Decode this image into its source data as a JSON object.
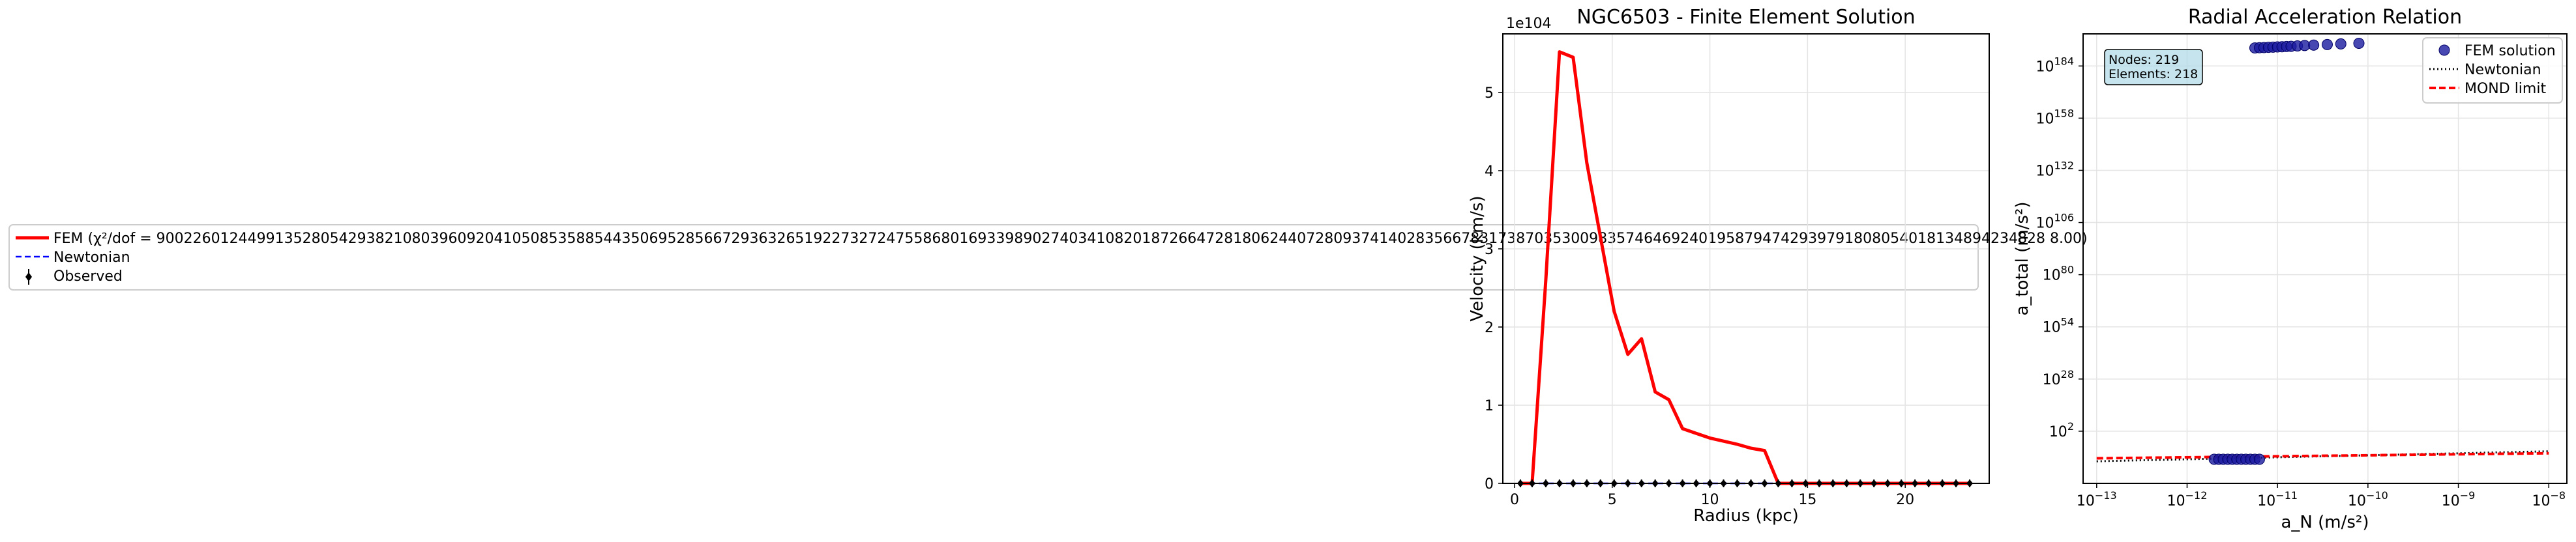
{
  "figure": {
    "legend_left": {
      "entries": [
        {
          "label": "FEM (χ²/dof = 900226012449913528054293821080396092041050853588544350695285667293632651922732724755868016933989027403410820187266472818062440728093741402835667831738703530098357464692401958794742939791808054018134894234828 8.00)",
          "color": "#ff0000",
          "style": "solid"
        },
        {
          "label": "Newtonian",
          "color": "#0000ff",
          "style": "dashed"
        },
        {
          "label": "Observed",
          "color": "#000000",
          "style": "errorbar"
        }
      ]
    }
  },
  "chart_data": [
    {
      "type": "line",
      "title": "NGC6503 - Finite Element Solution",
      "xlabel": "Radius (kpc)",
      "ylabel": "Velocity (km/s)",
      "offset_label": "1e104",
      "xlim": [
        -0.6,
        24.3
      ],
      "ylim": [
        0,
        5.75
      ],
      "x_ticks": [
        0,
        5,
        10,
        15,
        20
      ],
      "y_ticks": [
        0,
        1,
        2,
        3,
        4,
        5
      ],
      "grid": true,
      "series": [
        {
          "name": "FEM",
          "color": "#ff0000",
          "x": [
            0.3,
            0.9,
            1.6,
            2.3,
            3.0,
            3.7,
            4.4,
            5.1,
            5.8,
            6.5,
            7.2,
            7.9,
            8.6,
            9.3,
            10.0,
            10.7,
            11.4,
            12.1,
            12.8,
            13.5,
            14.2,
            14.9,
            15.6,
            16.3,
            17.0,
            17.7,
            18.4,
            19.1,
            19.8,
            20.5,
            21.2,
            21.9,
            22.6,
            23.3
          ],
          "values": [
            0,
            0,
            2.6,
            5.52,
            5.45,
            4.1,
            3.15,
            2.2,
            1.65,
            1.85,
            1.17,
            1.07,
            0.7,
            0.64,
            0.58,
            0.54,
            0.5,
            0.45,
            0.42,
            0,
            0,
            0,
            0,
            0,
            0,
            0,
            0,
            0,
            0,
            0,
            0,
            0,
            0,
            0
          ]
        },
        {
          "name": "Newtonian",
          "color": "#0000ff",
          "x": [
            0.3,
            23.3
          ],
          "values": [
            0,
            0
          ]
        },
        {
          "name": "Observed",
          "color": "#000000",
          "x": [
            0.3,
            0.9,
            1.6,
            2.3,
            3.0,
            3.7,
            4.4,
            5.1,
            5.8,
            6.5,
            7.2,
            7.9,
            8.6,
            9.3,
            10.0,
            10.7,
            11.4,
            12.1,
            12.8,
            13.5,
            14.2,
            14.9,
            15.6,
            16.3,
            17.0,
            17.7,
            18.4,
            19.1,
            19.8,
            20.5,
            21.2,
            21.9,
            22.6,
            23.3
          ],
          "values": [
            0,
            0,
            0,
            0,
            0,
            0,
            0,
            0,
            0,
            0,
            0,
            0,
            0,
            0,
            0,
            0,
            0,
            0,
            0,
            0,
            0,
            0,
            0,
            0,
            0,
            0,
            0,
            0,
            0,
            0,
            0,
            0,
            0,
            0
          ]
        }
      ]
    },
    {
      "type": "scatter",
      "title": "Radial Acceleration Relation",
      "xlabel": "a_N (m/s²)",
      "ylabel": "a_total (m/s²)",
      "x_scale": "log",
      "y_scale": "log",
      "x_tick_exponents": [
        -13,
        -12,
        -11,
        -10,
        -9,
        -8
      ],
      "y_tick_exponents": [
        2,
        28,
        54,
        80,
        106,
        132,
        158,
        184
      ],
      "xlim_exp": [
        -13.15,
        -7.8
      ],
      "ylim_exp": [
        -24,
        200
      ],
      "grid": true,
      "annotation": {
        "lines": [
          "Nodes: 219",
          "Elements: 218"
        ]
      },
      "legend": {
        "placement": "top-right",
        "entries": [
          {
            "label": "FEM solution",
            "color": "#1a1aa0",
            "style": "marker"
          },
          {
            "label": "Newtonian",
            "color": "#000000",
            "style": "dotted"
          },
          {
            "label": "MOND limit",
            "color": "#ff0000",
            "style": "dashed"
          }
        ]
      },
      "series": [
        {
          "name": "FEM solution",
          "color": "#1a1aa0",
          "points_exp": [
            [
              -11.25,
              193
            ],
            [
              -11.2,
              193.1
            ],
            [
              -11.15,
              193.2
            ],
            [
              -11.1,
              193.3
            ],
            [
              -11.05,
              193.4
            ],
            [
              -11.0,
              193.5
            ],
            [
              -10.95,
              193.6
            ],
            [
              -10.9,
              193.7
            ],
            [
              -10.85,
              193.8
            ],
            [
              -10.78,
              194
            ],
            [
              -10.7,
              194.2
            ],
            [
              -10.6,
              194.4
            ],
            [
              -10.45,
              194.7
            ],
            [
              -10.3,
              195
            ],
            [
              -10.1,
              195.3
            ],
            [
              -11.7,
              -12
            ],
            [
              -11.65,
              -12
            ],
            [
              -11.6,
              -12
            ],
            [
              -11.55,
              -12
            ],
            [
              -11.5,
              -12
            ],
            [
              -11.45,
              -12
            ],
            [
              -11.4,
              -12
            ],
            [
              -11.35,
              -12
            ],
            [
              -11.3,
              -12
            ],
            [
              -11.25,
              -12
            ],
            [
              -11.2,
              -12
            ]
          ]
        },
        {
          "name": "Newtonian",
          "color": "#000000",
          "line_exp": [
            [
              -13.0,
              -13.0
            ],
            [
              -8.0,
              -8.0
            ]
          ]
        },
        {
          "name": "MOND limit",
          "color": "#ff0000",
          "line_exp": [
            [
              -13.0,
              -11.5
            ],
            [
              -8.0,
              -9.0
            ]
          ]
        }
      ]
    }
  ]
}
